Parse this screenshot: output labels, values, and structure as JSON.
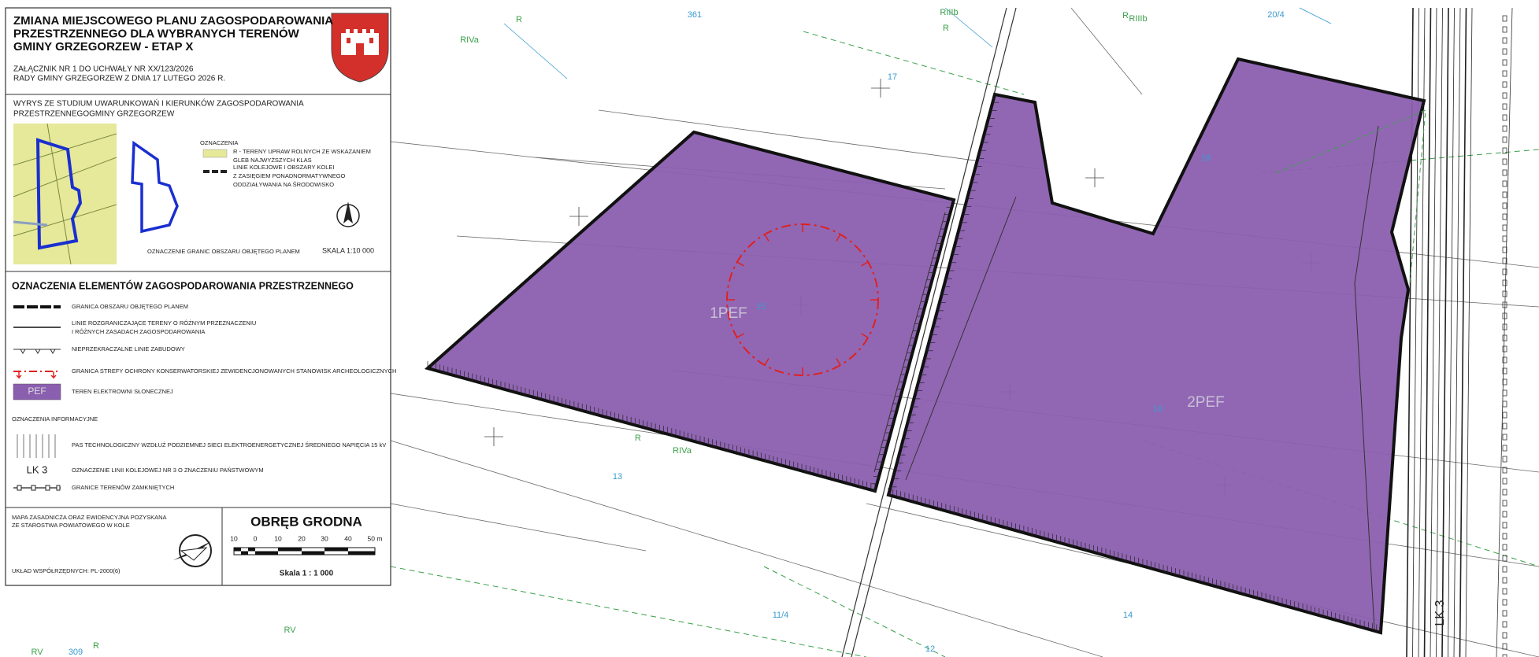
{
  "header": {
    "title": [
      "ZMIANA MIEJSCOWEGO PLANU ZAGOSPODAROWANIA",
      "PRZESTRZENNEGO DLA WYBRANYCH TERENÓW",
      "GMINY GRZEGORZEW - ETAP X"
    ],
    "resolution": [
      "ZAŁĄCZNIK NR 1 DO UCHWAŁY NR XX/123/2026",
      "RADY GMINY GRZEGORZEW Z DNIA 17 LUTEGO 2026 R."
    ]
  },
  "study": {
    "title": [
      "WYRYS ZE STUDIUM UWARUNKOWAŃ I KIERUNKÓW ZAGOSPODAROWANIA",
      "PRZESTRZENNEGOGMINY GRZEGORZEW"
    ],
    "legend_heading": "OZNACZENIA",
    "items": [
      [
        "R - TERENY UPRAW ROLNYCH ZE WSKAZANIEM",
        "GLEB NAJWYŻSZYCH KLAS"
      ],
      [
        "LINIE KOLEJOWE I OBSZARY KOLEI",
        "Z ZASIĘGIEM PONADNORMATYWNEGO",
        "ODDZIAŁYWANIA NA ŚRODOWISKO"
      ]
    ],
    "boundary_note": "OZNACZENIE GRANIC OBSZARU OBJĘTEGO PLANEM",
    "scale": "SKALA 1:10 000"
  },
  "legend": {
    "title": "OZNACZENIA ELEMENTÓW ZAGOSPODAROWANIA PRZESTRZENNEGO",
    "items": [
      [
        "GRANICA OBSZARU OBJĘTEGO PLANEM"
      ],
      [
        "LINIE ROZGRANICZAJĄCE TERENY O RÓŻNYM PRZEZNACZENIU",
        "I RÓŻNYCH ZASADACH ZAGOSPODAROWANIA"
      ],
      [
        "NIEPRZEKRACZALNE LINIE ZABUDOWY"
      ],
      [
        "GRANICA STREFY OCHRONY KONSERWATORSKIEJ ZEWIDENCJONOWANYCH STANOWISK ARCHEOLOGICZNYCH"
      ],
      [
        "TEREN ELEKTROWNI SŁONECZNEJ"
      ]
    ],
    "pef_symbol": "PEF",
    "info_title": "OZNACZENIA INFORMACYJNE",
    "info_items": [
      [
        "PAS TECHNOLOGICZNY WZDŁUŻ PODZIEMNEJ SIECI ELEKTROENERGETYCZNEJ ŚREDNIEGO NAPIĘCIA 15 kV"
      ],
      [
        "OZNACZENIE LINII KOLEJOWEJ NR 3 O ZNACZENIU PAŃSTWOWYM"
      ],
      [
        "GRANICE TERENÓW ZAMKNIĘTYCH"
      ]
    ],
    "lk_symbol": "LK 3"
  },
  "footer": {
    "source": [
      "MAPA ZASADNICZA ORAZ EWIDENCYJNA POZYSKANA",
      "ZE STAROSTWA POWIATOWEGO W KOLE"
    ],
    "coords": "UKŁAD WSPÓŁRZĘDNYCH: PL-2000(6)",
    "precinct": "OBRĘB GRODNA",
    "scale_ticks": [
      "10",
      "0",
      "10",
      "20",
      "30",
      "40",
      "50 m"
    ],
    "scale": "Skala  1 : 1 000"
  },
  "map": {
    "labels": [
      "361",
      "R",
      "RIVa",
      "RIIIb",
      "R",
      "R",
      "RIIIb",
      "20/4",
      "17",
      "18",
      "1PEF",
      "15",
      "2PEF",
      "16",
      "R",
      "RIVa",
      "13",
      "14",
      "11/4",
      "12",
      "309",
      "RV",
      "R",
      "RV",
      "LK 3"
    ]
  }
}
